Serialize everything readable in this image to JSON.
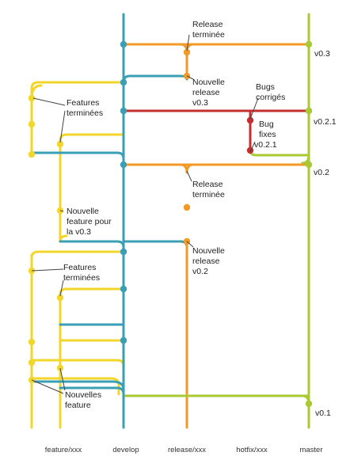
{
  "colors": {
    "feature": "#F2D629",
    "develop": "#3A9FB5",
    "release": "#F29A25",
    "hotfix": "#C62F2F",
    "master": "#A9C932",
    "annotation": "#444444"
  },
  "branches": {
    "feature": "feature/xxx",
    "develop": "develop",
    "release": "release/xxx",
    "hotfix": "hotfix/xxx",
    "master": "master"
  },
  "versions": {
    "v03": "v0.3",
    "v021": "v0.2.1",
    "v02": "v0.2",
    "v01": "v0.1"
  },
  "annotations": {
    "release_terminee_1": [
      "Release",
      "terminée"
    ],
    "nouvelle_release_03": [
      "Nouvelle",
      "release",
      "v0.3"
    ],
    "features_terminees_1": [
      "Features",
      "terminées"
    ],
    "bugs_corriges": [
      "Bugs",
      "corrigés"
    ],
    "bug_fixes": [
      "Bug",
      "fixes",
      "v0.2.1"
    ],
    "release_terminee_2": [
      "Release",
      "terminée"
    ],
    "nouvelle_feature_03": [
      "Nouvelle",
      "feature pour",
      "la v0.3"
    ],
    "nouvelle_release_02": [
      "Nouvelle",
      "release",
      "v0.2"
    ],
    "features_terminees_2": [
      "Features",
      "terminées"
    ],
    "nouvelles_feature": [
      "Nouvelles",
      "feature"
    ]
  }
}
